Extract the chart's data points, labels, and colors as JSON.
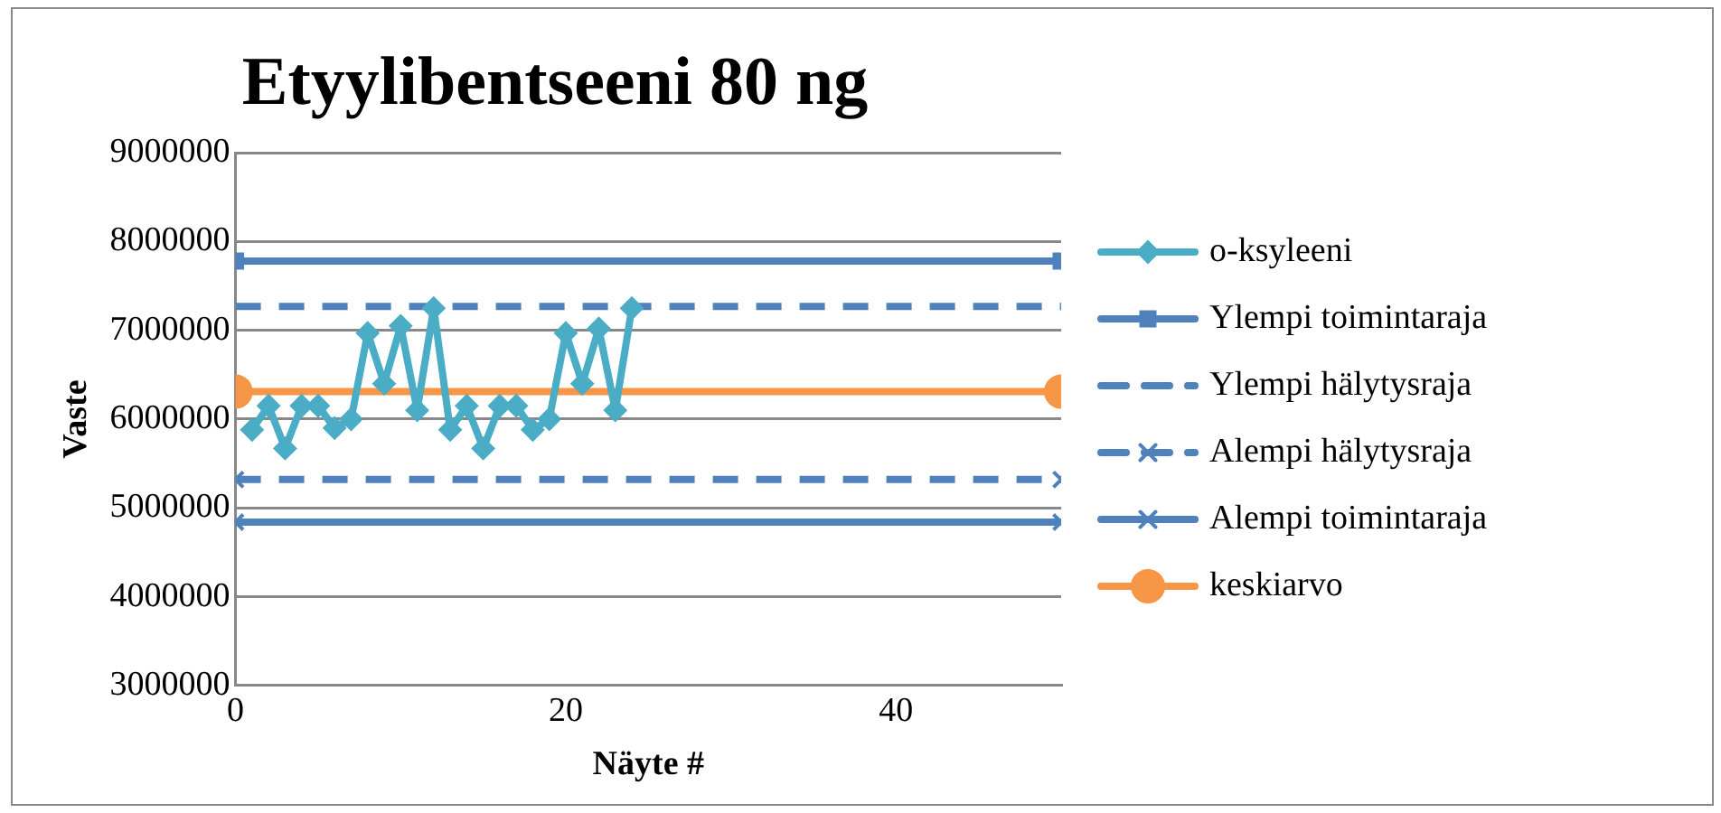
{
  "chart_data": {
    "type": "line",
    "title": "Etyylibentseeni 80 ng",
    "xlabel": "Näyte #",
    "ylabel": "Vaste",
    "xlim": [
      0,
      50
    ],
    "xticks": [
      0,
      20,
      40
    ],
    "ylim": [
      3000000,
      9000000
    ],
    "yticks": [
      3000000,
      4000000,
      5000000,
      6000000,
      7000000,
      8000000,
      9000000
    ],
    "grid": "y",
    "legend": "right",
    "series": [
      {
        "name": "o-ksyleeni",
        "color": "#4bacc6",
        "marker": "diamond",
        "line_style": "solid",
        "x": [
          1,
          2,
          3,
          4,
          5,
          6,
          7,
          8,
          9,
          10,
          11,
          12,
          13,
          14,
          15,
          16,
          17,
          18,
          19,
          20,
          21,
          22,
          23,
          24
        ],
        "values": [
          5880000,
          6150000,
          5670000,
          6150000,
          6150000,
          5900000,
          6000000,
          6970000,
          6400000,
          7050000,
          6100000,
          7250000,
          5880000,
          6150000,
          5670000,
          6150000,
          6150000,
          5880000,
          6000000,
          6970000,
          6400000,
          7020000,
          6100000,
          7250000
        ]
      },
      {
        "name": "Ylempi toimintaraja",
        "color": "#4f81bd",
        "marker": "square",
        "line_style": "solid",
        "x": [
          0,
          50
        ],
        "values": [
          7780000,
          7780000
        ]
      },
      {
        "name": "Ylempi hälytysraja",
        "color": "#4f81bd",
        "marker": "none",
        "line_style": "dashed",
        "x": [
          0,
          50
        ],
        "values": [
          7270000,
          7270000
        ]
      },
      {
        "name": "Alempi hälytysraja",
        "color": "#4f81bd",
        "marker": "cross",
        "line_style": "dashed",
        "x": [
          0,
          50
        ],
        "values": [
          5320000,
          5320000
        ]
      },
      {
        "name": "Alempi toimintaraja",
        "color": "#4f81bd",
        "marker": "cross",
        "line_style": "solid",
        "x": [
          0,
          50
        ],
        "values": [
          4840000,
          4840000
        ]
      },
      {
        "name": "keskiarvo",
        "color": "#f79646",
        "marker": "circle",
        "line_style": "solid",
        "x": [
          0,
          50
        ],
        "values": [
          6310000,
          6310000
        ]
      }
    ]
  }
}
